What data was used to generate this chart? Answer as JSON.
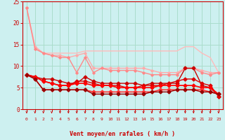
{
  "bg_color": "#cdf0f0",
  "grid_color": "#aaddcc",
  "xlabel": "Vent moyen/en rafales ( km/h )",
  "xlabel_color": "#cc0000",
  "tick_color": "#cc0000",
  "arrow_color": "#cc0000",
  "xlim": [
    -0.5,
    23.5
  ],
  "ylim": [
    0,
    25
  ],
  "yticks": [
    0,
    5,
    10,
    15,
    20,
    25
  ],
  "xticks": [
    0,
    1,
    2,
    3,
    4,
    5,
    6,
    7,
    8,
    9,
    10,
    11,
    12,
    13,
    14,
    15,
    16,
    17,
    18,
    19,
    20,
    21,
    22,
    23
  ],
  "lines": [
    {
      "x": [
        0,
        1,
        2,
        3,
        4,
        5,
        6,
        7,
        8,
        9,
        10,
        11,
        12,
        13,
        14,
        15,
        16,
        17,
        18,
        19,
        20,
        21,
        22,
        23
      ],
      "y": [
        23.5,
        14.5,
        13.0,
        13.0,
        13.0,
        13.0,
        13.0,
        13.5,
        13.5,
        13.5,
        13.5,
        13.5,
        13.5,
        13.5,
        13.5,
        13.5,
        13.5,
        13.5,
        13.5,
        14.5,
        14.5,
        13.0,
        12.0,
        8.5
      ],
      "color": "#ffbbbb",
      "lw": 1.0,
      "marker": null,
      "markersize": 0
    },
    {
      "x": [
        0,
        1,
        2,
        3,
        4,
        5,
        6,
        7,
        8,
        9,
        10,
        11,
        12,
        13,
        14,
        15,
        16,
        17,
        18,
        19,
        20,
        21,
        22,
        23
      ],
      "y": [
        23.5,
        14.5,
        13.0,
        12.5,
        12.5,
        12.0,
        12.5,
        13.0,
        9.5,
        9.5,
        9.5,
        9.5,
        9.5,
        9.5,
        9.5,
        9.0,
        8.5,
        8.5,
        8.5,
        9.5,
        9.5,
        9.0,
        8.5,
        8.5
      ],
      "color": "#ffaaaa",
      "lw": 1.0,
      "marker": "D",
      "markersize": 1.8
    },
    {
      "x": [
        0,
        1,
        2,
        3,
        4,
        5,
        6,
        7,
        8,
        9,
        10,
        11,
        12,
        13,
        14,
        15,
        16,
        17,
        18,
        19,
        20,
        21,
        22,
        23
      ],
      "y": [
        23.5,
        14.0,
        13.0,
        12.5,
        12.0,
        12.0,
        8.5,
        12.0,
        8.5,
        9.5,
        9.0,
        9.0,
        9.0,
        9.0,
        8.5,
        8.0,
        8.0,
        8.0,
        8.0,
        9.5,
        9.5,
        8.5,
        8.0,
        8.5
      ],
      "color": "#ff8888",
      "lw": 1.0,
      "marker": "D",
      "markersize": 1.8
    },
    {
      "x": [
        0,
        1,
        2,
        3,
        4,
        5,
        6,
        7,
        8,
        9,
        10,
        11,
        12,
        13,
        14,
        15,
        16,
        17,
        18,
        19,
        20,
        21,
        22,
        23
      ],
      "y": [
        8.0,
        7.5,
        7.0,
        7.0,
        6.5,
        6.0,
        6.0,
        7.5,
        6.5,
        6.0,
        6.0,
        6.0,
        6.0,
        6.0,
        5.5,
        6.0,
        6.0,
        6.0,
        6.0,
        9.5,
        9.5,
        5.5,
        5.0,
        3.0
      ],
      "color": "#cc0000",
      "lw": 1.0,
      "marker": "D",
      "markersize": 2.5
    },
    {
      "x": [
        0,
        1,
        2,
        3,
        4,
        5,
        6,
        7,
        8,
        9,
        10,
        11,
        12,
        13,
        14,
        15,
        16,
        17,
        18,
        19,
        20,
        21,
        22,
        23
      ],
      "y": [
        8.0,
        7.5,
        6.5,
        6.0,
        5.5,
        5.5,
        6.5,
        6.5,
        6.0,
        5.5,
        5.5,
        5.5,
        5.0,
        5.0,
        5.5,
        5.5,
        5.5,
        6.0,
        6.5,
        7.0,
        7.0,
        6.0,
        5.5,
        3.0
      ],
      "color": "#dd0000",
      "lw": 1.0,
      "marker": "D",
      "markersize": 2.5
    },
    {
      "x": [
        0,
        1,
        2,
        3,
        4,
        5,
        6,
        7,
        8,
        9,
        10,
        11,
        12,
        13,
        14,
        15,
        16,
        17,
        18,
        19,
        20,
        21,
        22,
        23
      ],
      "y": [
        8.0,
        7.5,
        6.5,
        6.0,
        5.5,
        5.5,
        6.0,
        6.0,
        5.5,
        5.5,
        5.5,
        5.0,
        5.0,
        5.0,
        5.0,
        5.0,
        5.5,
        5.5,
        5.5,
        5.5,
        5.5,
        5.0,
        5.0,
        3.5
      ],
      "color": "#ff0000",
      "lw": 1.2,
      "marker": "D",
      "markersize": 2.5
    },
    {
      "x": [
        0,
        1,
        2,
        3,
        4,
        5,
        6,
        7,
        8,
        9,
        10,
        11,
        12,
        13,
        14,
        15,
        16,
        17,
        18,
        19,
        20,
        21,
        22,
        23
      ],
      "y": [
        8.0,
        7.0,
        4.5,
        4.5,
        4.5,
        4.5,
        4.5,
        4.5,
        4.0,
        4.0,
        4.0,
        4.0,
        4.0,
        4.0,
        4.0,
        4.0,
        4.5,
        4.5,
        4.5,
        4.5,
        4.5,
        4.5,
        4.0,
        3.5
      ],
      "color": "#ff3333",
      "lw": 1.2,
      "marker": "D",
      "markersize": 2.5
    },
    {
      "x": [
        0,
        1,
        2,
        3,
        4,
        5,
        6,
        7,
        8,
        9,
        10,
        11,
        12,
        13,
        14,
        15,
        16,
        17,
        18,
        19,
        20,
        21,
        22,
        23
      ],
      "y": [
        8.0,
        7.0,
        4.5,
        4.5,
        4.5,
        4.5,
        4.5,
        4.5,
        3.5,
        3.5,
        3.5,
        3.5,
        3.5,
        3.5,
        3.5,
        4.0,
        4.0,
        4.0,
        4.5,
        4.5,
        4.5,
        4.0,
        4.0,
        3.5
      ],
      "color": "#990000",
      "lw": 1.0,
      "marker": "D",
      "markersize": 2.5
    }
  ]
}
